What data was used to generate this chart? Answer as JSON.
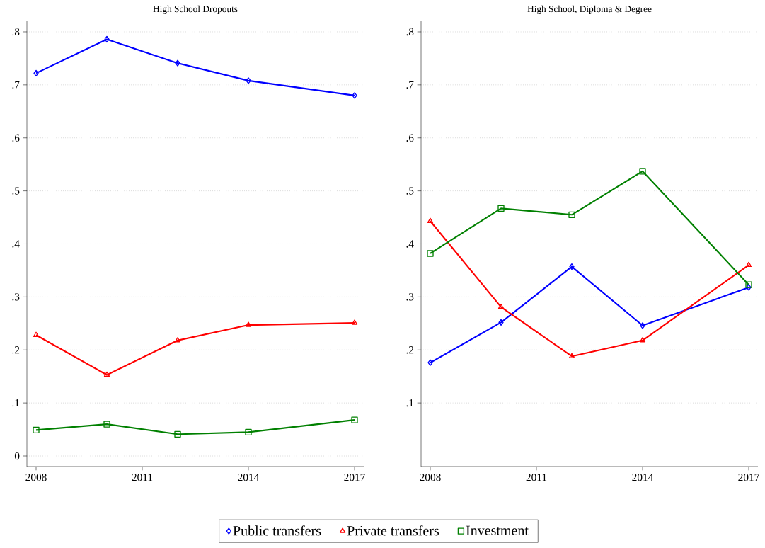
{
  "chart_data": [
    {
      "type": "line",
      "title": "High School Dropouts",
      "x": [
        2008,
        2010,
        2012,
        2014,
        2017
      ],
      "xlim": [
        2007.74,
        2017.26
      ],
      "xticks": [
        2008,
        2011,
        2014,
        2017
      ],
      "ylim": [
        -0.02,
        0.82
      ],
      "yticks": [
        0,
        {
          "value": 0.1,
          "label": ".1"
        },
        {
          "value": 0.2,
          "label": ".2"
        },
        {
          "value": 0.3,
          "label": ".3"
        },
        {
          "value": 0.4,
          "label": ".4"
        },
        {
          "value": 0.5,
          "label": ".5"
        },
        {
          "value": 0.6,
          "label": ".6"
        },
        {
          "value": 0.7,
          "label": ".7"
        },
        {
          "value": 0.8,
          "label": ".8"
        }
      ],
      "grid": "y",
      "legend": "bottom",
      "line_style": "solid",
      "series": [
        {
          "name": "Public transfers",
          "color": "#0000ff",
          "marker": "diamond",
          "values": [
            0.722,
            0.786,
            0.741,
            0.708,
            0.68
          ]
        },
        {
          "name": "Private transfers",
          "color": "#ff0000",
          "marker": "triangle",
          "values": [
            0.228,
            0.153,
            0.218,
            0.247,
            0.251
          ]
        },
        {
          "name": "Investment",
          "color": "#008000",
          "marker": "square",
          "values": [
            0.049,
            0.06,
            0.041,
            0.045,
            0.068
          ]
        }
      ]
    },
    {
      "type": "line",
      "title": "High School, Diploma & Degree",
      "x": [
        2008,
        2010,
        2012,
        2014,
        2017
      ],
      "xlim": [
        2007.74,
        2017.26
      ],
      "xticks": [
        2008,
        2011,
        2014,
        2017
      ],
      "ylim": [
        -0.02,
        0.82
      ],
      "yticks": [
        {
          "value": 0.1,
          "label": ".1"
        },
        {
          "value": 0.2,
          "label": ".2"
        },
        {
          "value": 0.3,
          "label": ".3"
        },
        {
          "value": 0.4,
          "label": ".4"
        },
        {
          "value": 0.5,
          "label": ".5"
        },
        {
          "value": 0.6,
          "label": ".6"
        },
        {
          "value": 0.7,
          "label": ".7"
        },
        {
          "value": 0.8,
          "label": ".8"
        }
      ],
      "grid": "y",
      "line_style": "solid",
      "series": [
        {
          "color": "#0000ff",
          "marker": "diamond",
          "values": [
            0.176,
            0.252,
            0.357,
            0.246,
            0.318
          ]
        },
        {
          "color": "#ff0000",
          "marker": "triangle",
          "values": [
            0.443,
            0.281,
            0.188,
            0.218,
            0.36
          ]
        },
        {
          "color": "#008000",
          "marker": "square",
          "values": [
            0.382,
            0.467,
            0.455,
            0.537,
            0.323
          ]
        }
      ]
    }
  ]
}
